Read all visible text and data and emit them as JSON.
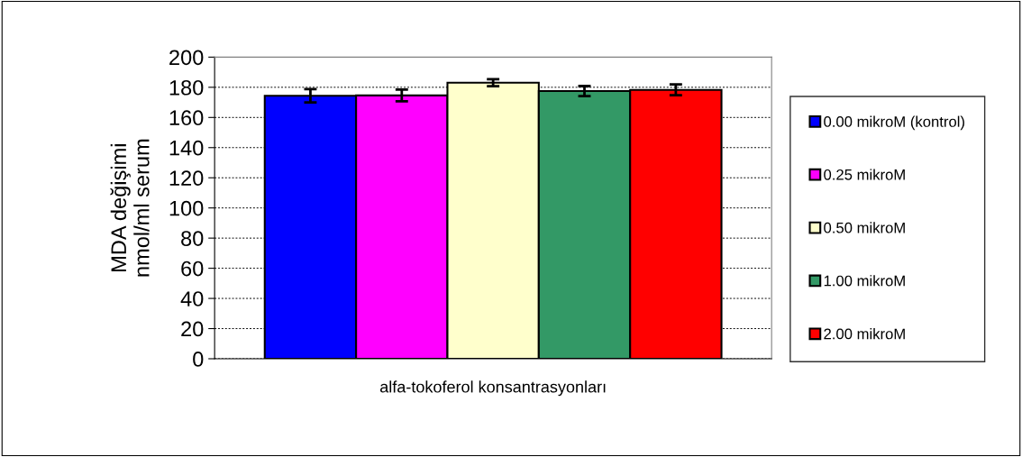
{
  "chart_data": {
    "type": "bar",
    "xlabel": "alfa-tokoferol konsantrasyonları",
    "ylabel": "MDA değişimi\nnmol/ml serum",
    "categories": [
      null
    ],
    "series": [
      {
        "name": "0.00 mikroM (kontrol)",
        "color": "#0000ff",
        "values": [
          174.4
        ],
        "errors": [
          4.4
        ]
      },
      {
        "name": "0.25 mikroM",
        "color": "#ff00ff",
        "values": [
          174.6
        ],
        "errors": [
          3.9
        ]
      },
      {
        "name": "0.50 mikroM",
        "color": "#ffffcc",
        "values": [
          183
        ],
        "errors": [
          2.3
        ]
      },
      {
        "name": "1.00 mikroM",
        "color": "#339966",
        "values": [
          177.5
        ],
        "errors": [
          3.3
        ]
      },
      {
        "name": "2.00 mikroM",
        "color": "#ff0000",
        "values": [
          178.3
        ],
        "errors": [
          3.6
        ]
      }
    ],
    "ylim": [
      0,
      200
    ],
    "yticks": [
      0,
      20,
      40,
      60,
      80,
      100,
      120,
      140,
      160,
      180,
      200
    ],
    "grid": "y",
    "legend": "right"
  }
}
